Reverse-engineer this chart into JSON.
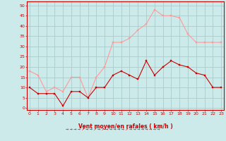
{
  "x": [
    0,
    1,
    2,
    3,
    4,
    5,
    6,
    7,
    8,
    9,
    10,
    11,
    12,
    13,
    14,
    15,
    16,
    17,
    18,
    19,
    20,
    21,
    22,
    23
  ],
  "y_moyen": [
    10,
    7,
    7,
    7,
    1,
    8,
    8,
    5,
    10,
    10,
    16,
    18,
    16,
    14,
    23,
    16,
    20,
    23,
    21,
    20,
    17,
    16,
    10,
    10
  ],
  "y_rafales": [
    18,
    16,
    8,
    10,
    8,
    15,
    15,
    5,
    15,
    20,
    32,
    32,
    34,
    38,
    41,
    48,
    45,
    45,
    44,
    36,
    32,
    32,
    32,
    32
  ],
  "bg_color": "#cdeaea",
  "grid_color": "#aacccc",
  "line_color_moyen": "#cc0000",
  "line_color_rafales": "#ff9999",
  "xlabel": "Vent moyen/en rafales ( km/h )",
  "xlabel_color": "#cc0000",
  "tick_color": "#cc0000",
  "yticks": [
    0,
    5,
    10,
    15,
    20,
    25,
    30,
    35,
    40,
    45,
    50
  ],
  "ylim": [
    -1,
    52
  ],
  "xlim": [
    -0.3,
    23.3
  ]
}
